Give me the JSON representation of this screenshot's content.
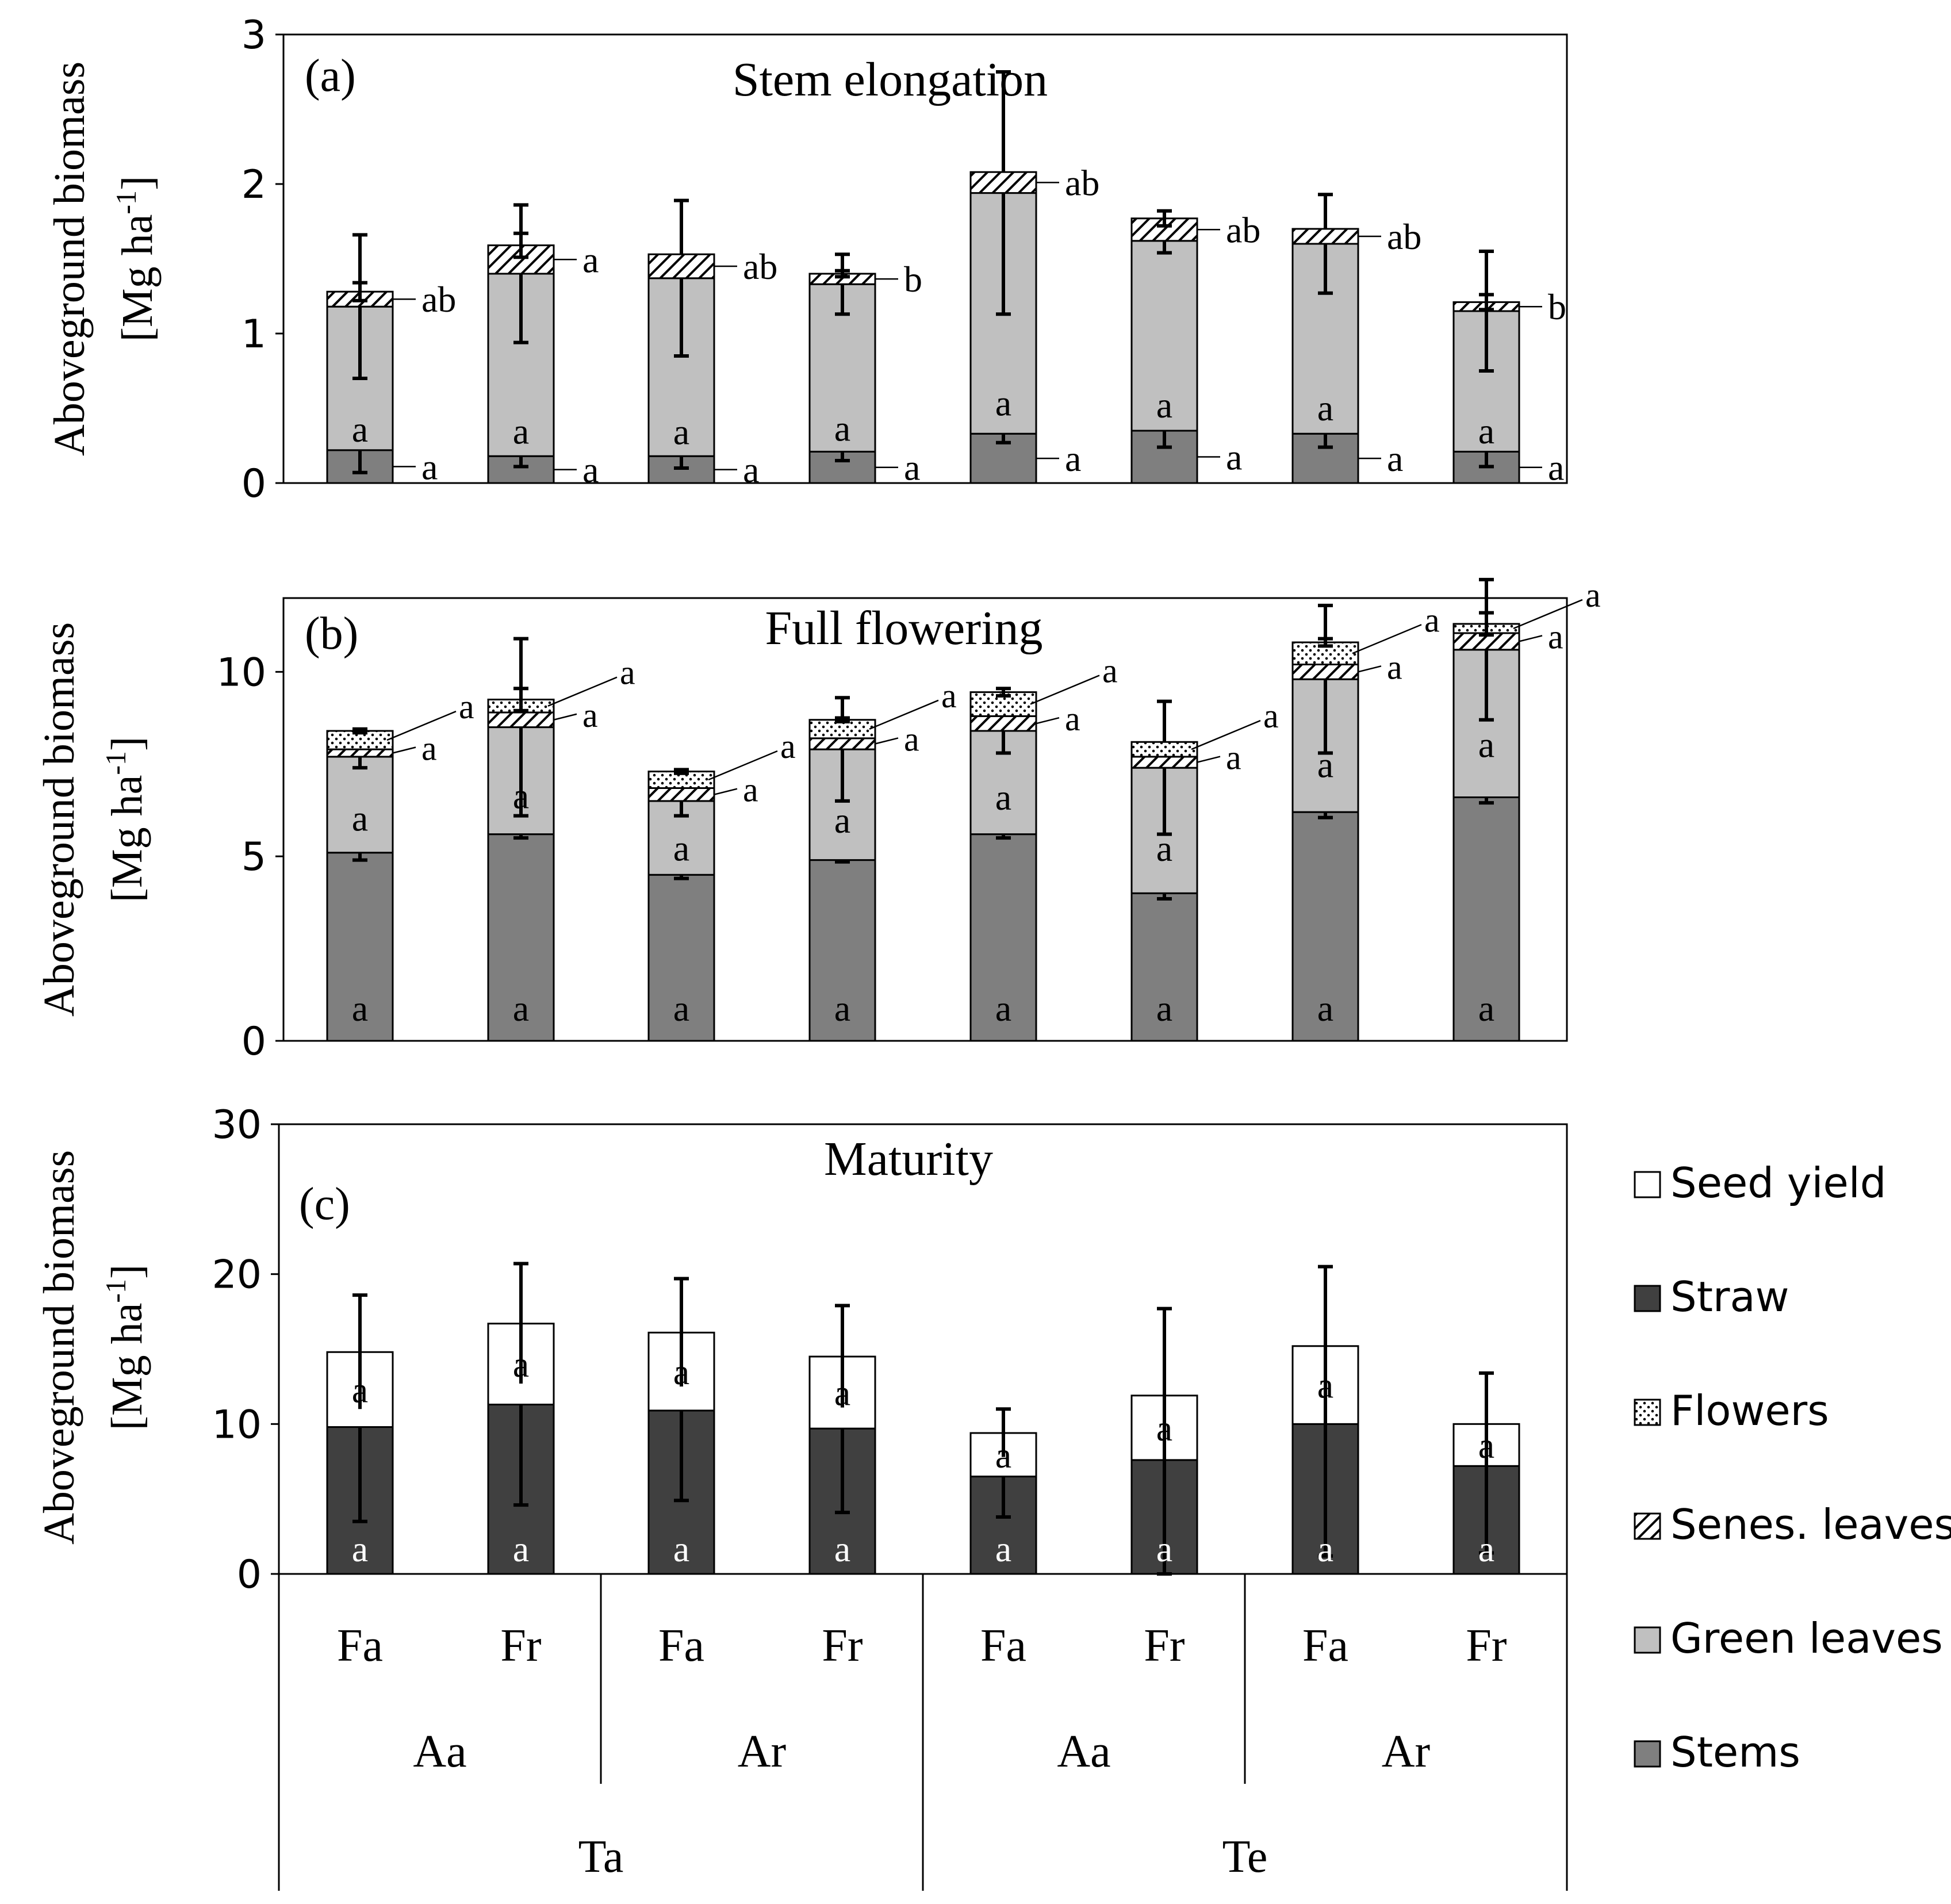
{
  "colors": {
    "stems": "#7f7f7f",
    "green_leaves": "#c0c0c0",
    "straw": "#404040",
    "seed_yield": "#ffffff",
    "senes_leaves": "hatch",
    "flowers": "dots"
  },
  "x_axis": {
    "level1": [
      "Fa",
      "Fr",
      "Fa",
      "Fr",
      "Fa",
      "Fr",
      "Fa",
      "Fr"
    ],
    "level2": [
      "Aa",
      "Ar",
      "Aa",
      "Ar"
    ],
    "level3": [
      "Ta",
      "Te"
    ]
  },
  "legend": {
    "items": [
      {
        "key": "seed_yield",
        "label": "Seed yield"
      },
      {
        "key": "straw",
        "label": "Straw"
      },
      {
        "key": "flowers",
        "label": "Flowers"
      },
      {
        "key": "senes_leaves",
        "label": "Senes. leaves"
      },
      {
        "key": "green_leaves",
        "label": "Green leaves"
      },
      {
        "key": "stems",
        "label": "Stems"
      }
    ]
  },
  "chart_data": [
    {
      "type": "bar",
      "stacked": true,
      "panel": "(a)",
      "title": "Stem elongation",
      "ylabel_line1": "Aboveground biomass",
      "ylabel_line2": "[Mg ha",
      "ylabel_sup": "-1",
      "ylabel_close": "]",
      "ylim": [
        0,
        3
      ],
      "yticks": [
        0,
        1,
        2,
        3
      ],
      "ytick_labels": [
        "0",
        "1",
        "2",
        "3"
      ],
      "categories": [
        "Ta-Aa-Fa",
        "Ta-Aa-Fr",
        "Ta-Ar-Fa",
        "Ta-Ar-Fr",
        "Te-Aa-Fa",
        "Te-Aa-Fr",
        "Te-Ar-Fa",
        "Te-Ar-Fr"
      ],
      "series": [
        {
          "name": "Stems",
          "key": "stems",
          "values": [
            0.22,
            0.18,
            0.18,
            0.21,
            0.33,
            0.35,
            0.33,
            0.21
          ],
          "error": [
            0.15,
            0.07,
            0.08,
            0.06,
            0.06,
            0.11,
            0.09,
            0.1
          ],
          "letters": [
            "a",
            "a",
            "a",
            "a",
            "a",
            "a",
            "a",
            "a"
          ]
        },
        {
          "name": "Green leaves",
          "key": "green_leaves",
          "values": [
            0.96,
            1.22,
            1.19,
            1.12,
            1.61,
            1.27,
            1.27,
            0.94
          ],
          "error": [
            0.48,
            0.46,
            0.52,
            0.2,
            0.81,
            0.08,
            0.33,
            0.4
          ],
          "letters": [
            "a",
            "a",
            "a",
            "a",
            "a",
            "a",
            "a",
            "a"
          ]
        },
        {
          "name": "Senes. leaves",
          "key": "senes_leaves",
          "values": [
            0.1,
            0.19,
            0.16,
            0.07,
            0.14,
            0.15,
            0.1,
            0.06
          ],
          "error": [
            0.06,
            0.08,
            0,
            0.02,
            0,
            0.05,
            0,
            0.05
          ],
          "letters": [
            "ab",
            "a",
            "ab",
            "b",
            "ab",
            "ab",
            "ab",
            "b"
          ]
        }
      ]
    },
    {
      "type": "bar",
      "stacked": true,
      "panel": "(b)",
      "title": "Full flowering",
      "ylabel_line1": "Aboveground biomass",
      "ylabel_line2": "[Mg ha",
      "ylabel_sup": "-1",
      "ylabel_close": "]",
      "ylim": [
        0,
        12
      ],
      "yticks": [
        0,
        5,
        10
      ],
      "ytick_labels": [
        "0",
        "5",
        "10"
      ],
      "categories": [
        "Ta-Aa-Fa",
        "Ta-Aa-Fr",
        "Ta-Ar-Fa",
        "Ta-Ar-Fr",
        "Te-Aa-Fa",
        "Te-Aa-Fr",
        "Te-Ar-Fa",
        "Te-Ar-Fr"
      ],
      "series": [
        {
          "name": "Stems",
          "key": "stems",
          "values": [
            5.1,
            5.6,
            4.5,
            4.9,
            5.6,
            4.0,
            6.2,
            6.6
          ],
          "error": [
            0.2,
            0.1,
            0.1,
            0.05,
            0.1,
            0.15,
            0.15,
            0.15
          ],
          "letters": [
            "a",
            "a",
            "a",
            "a",
            "a",
            "a",
            "a",
            "a"
          ]
        },
        {
          "name": "Green leaves",
          "key": "green_leaves",
          "values": [
            2.6,
            2.9,
            2.0,
            3.0,
            2.8,
            3.4,
            3.6,
            4.0
          ],
          "error": [
            0.3,
            2.4,
            0.4,
            1.4,
            0.6,
            1.8,
            2.0,
            1.9
          ],
          "letters": [
            "a",
            "a",
            "a",
            "a",
            "a",
            "a",
            "a",
            "a"
          ]
        },
        {
          "name": "Senes. leaves",
          "key": "senes_leaves",
          "values": [
            0.2,
            0.4,
            0.35,
            0.3,
            0.4,
            0.3,
            0.4,
            0.45
          ],
          "error": [
            0,
            0,
            0,
            0,
            0,
            0,
            0,
            0
          ],
          "letters": [
            "a",
            "a",
            "a",
            "a",
            "a",
            "a",
            "a",
            "a"
          ]
        },
        {
          "name": "Flowers",
          "key": "flowers",
          "values": [
            0.5,
            0.35,
            0.45,
            0.5,
            0.65,
            0.4,
            0.6,
            0.25
          ],
          "error": [
            0.05,
            0.3,
            0.05,
            0.05,
            0.1,
            0,
            0.1,
            0.3
          ],
          "letters": [
            "a",
            "a",
            "a",
            "a",
            "a",
            "a",
            "a",
            "a"
          ]
        }
      ]
    },
    {
      "type": "bar",
      "stacked": true,
      "panel": "(c)",
      "title": "Maturity",
      "ylabel_line1": "Aboveground biomass",
      "ylabel_line2": "[Mg ha",
      "ylabel_sup": "-1",
      "ylabel_close": "]",
      "ylim": [
        0,
        30
      ],
      "yticks": [
        0,
        10,
        20,
        30
      ],
      "ytick_labels": [
        "0",
        "10",
        "20",
        "30"
      ],
      "categories": [
        "Ta-Aa-Fa",
        "Ta-Aa-Fr",
        "Ta-Ar-Fa",
        "Ta-Ar-Fr",
        "Te-Aa-Fa",
        "Te-Aa-Fr",
        "Te-Ar-Fa",
        "Te-Ar-Fr"
      ],
      "series": [
        {
          "name": "Straw",
          "key": "straw",
          "values": [
            9.8,
            11.3,
            10.9,
            9.7,
            6.5,
            7.6,
            10.0,
            7.2
          ],
          "error_low": [
            6.3,
            6.7,
            6.0,
            5.6,
            2.7,
            7.6,
            8.8,
            5.8
          ],
          "letters": [
            "a",
            "a",
            "a",
            "a",
            "a",
            "a",
            "a",
            "a"
          ]
        },
        {
          "name": "Seed yield",
          "key": "seed_yield",
          "values": [
            5.0,
            5.4,
            5.2,
            4.8,
            2.9,
            4.3,
            5.2,
            2.8
          ],
          "error": [
            3.8,
            4.0,
            3.6,
            3.4,
            1.6,
            5.8,
            5.3,
            3.4
          ],
          "letters": [
            "a",
            "a",
            "a",
            "a",
            "a",
            "a",
            "a",
            "a"
          ]
        }
      ]
    }
  ]
}
